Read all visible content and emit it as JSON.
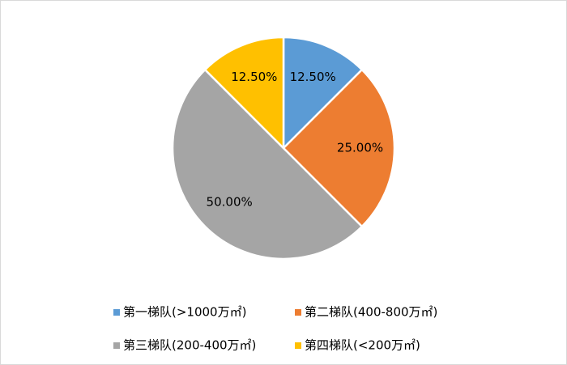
{
  "chart_data": {
    "type": "pie",
    "categories": [
      "第一梯队(>1000万㎡)",
      "第二梯队(400-800万㎡)",
      "第三梯队(200-400万㎡)",
      "第四梯队(<200万㎡)"
    ],
    "values": [
      12.5,
      25,
      50,
      12.5
    ],
    "value_labels": [
      "12.50%",
      "25.00%",
      "50.00%",
      "12.50%"
    ],
    "colors": [
      "#5b9bd5",
      "#ed7d31",
      "#a5a5a5",
      "#ffc000"
    ],
    "legend": "bottom"
  }
}
